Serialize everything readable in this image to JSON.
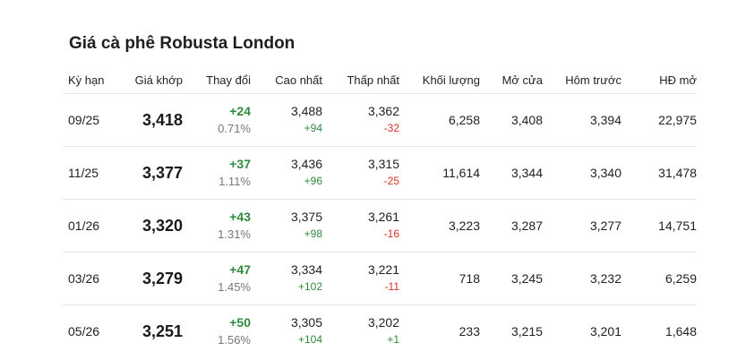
{
  "title": "Giá cà phê Robusta London",
  "columns": [
    "Kỳ hạn",
    "Giá khớp",
    "Thay đổi",
    "Cao nhất",
    "Thấp nhất",
    "Khối lượng",
    "Mở cửa",
    "Hôm trước",
    "HĐ mở"
  ],
  "colors": {
    "positive": "#2e8b3d",
    "negative": "#d93025"
  },
  "rows": [
    {
      "term": "09/25",
      "price": "3,418",
      "change": "+24",
      "change_pct": "0.71%",
      "high": "3,488",
      "high_delta": "+94",
      "low": "3,362",
      "low_delta": "-32",
      "volume": "6,258",
      "open": "3,408",
      "prev": "3,394",
      "open_interest": "22,975"
    },
    {
      "term": "11/25",
      "price": "3,377",
      "change": "+37",
      "change_pct": "1.11%",
      "high": "3,436",
      "high_delta": "+96",
      "low": "3,315",
      "low_delta": "-25",
      "volume": "11,614",
      "open": "3,344",
      "prev": "3,340",
      "open_interest": "31,478"
    },
    {
      "term": "01/26",
      "price": "3,320",
      "change": "+43",
      "change_pct": "1.31%",
      "high": "3,375",
      "high_delta": "+98",
      "low": "3,261",
      "low_delta": "-16",
      "volume": "3,223",
      "open": "3,287",
      "prev": "3,277",
      "open_interest": "14,751"
    },
    {
      "term": "03/26",
      "price": "3,279",
      "change": "+47",
      "change_pct": "1.45%",
      "high": "3,334",
      "high_delta": "+102",
      "low": "3,221",
      "low_delta": "-11",
      "volume": "718",
      "open": "3,245",
      "prev": "3,232",
      "open_interest": "6,259"
    },
    {
      "term": "05/26",
      "price": "3,251",
      "change": "+50",
      "change_pct": "1.56%",
      "high": "3,305",
      "high_delta": "+104",
      "low": "3,202",
      "low_delta": "+1",
      "volume": "233",
      "open": "3,215",
      "prev": "3,201",
      "open_interest": "1,648"
    }
  ]
}
